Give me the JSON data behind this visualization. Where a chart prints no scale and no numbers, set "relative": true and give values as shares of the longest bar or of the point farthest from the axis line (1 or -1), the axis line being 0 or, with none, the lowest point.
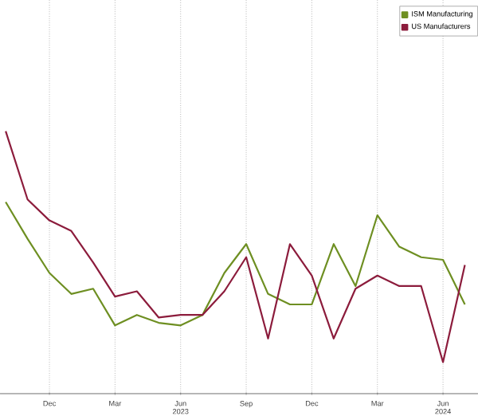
{
  "chart_data": {
    "type": "line",
    "relative": true,
    "grid": true,
    "legend": "top right",
    "categories": [
      null,
      null,
      "Dec",
      null,
      null,
      "Mar",
      null,
      null,
      "Jun 2023",
      null,
      null,
      "Sep",
      null,
      null,
      "Dec",
      null,
      null,
      "Mar",
      null,
      null,
      "Jun 2024",
      null
    ],
    "series": [
      {
        "name": "ISM Manufacturing",
        "color": "#6e8f22",
        "values": [
          0.73,
          0.59,
          0.46,
          0.38,
          0.4,
          0.26,
          0.3,
          0.27,
          0.26,
          0.3,
          0.46,
          0.57,
          0.38,
          0.34,
          0.34,
          0.57,
          0.41,
          0.68,
          0.56,
          0.52,
          0.51,
          0.34
        ]
      },
      {
        "name": "US Manufacturers",
        "color": "#8c1c3c",
        "values": [
          1.0,
          0.74,
          0.66,
          0.62,
          0.5,
          0.37,
          0.39,
          0.29,
          0.3,
          0.3,
          0.39,
          0.52,
          0.21,
          0.57,
          0.45,
          0.21,
          0.4,
          0.45,
          0.41,
          0.41,
          0.12,
          0.49
        ]
      }
    ]
  }
}
